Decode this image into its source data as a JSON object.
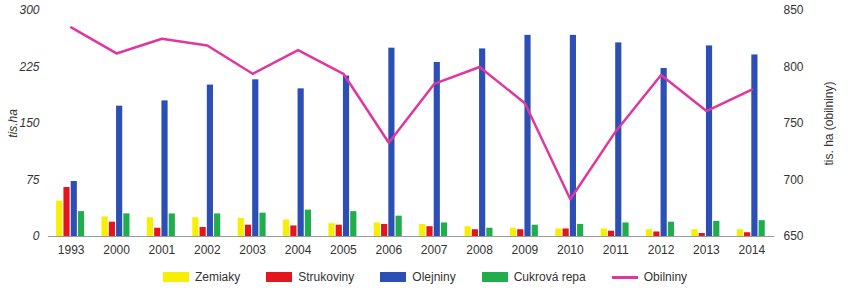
{
  "chart_data": {
    "type": "bar",
    "categories": [
      "1993",
      "2000",
      "2001",
      "2002",
      "2003",
      "2004",
      "2005",
      "2006",
      "2007",
      "2008",
      "2009",
      "2010",
      "2011",
      "2012",
      "2013",
      "2014"
    ],
    "ylabel": "tis.ha",
    "y2label": "tis. ha (obilniny)",
    "ylim": [
      0,
      300
    ],
    "yticks": [
      0,
      75,
      150,
      225,
      300
    ],
    "y2lim": [
      650,
      850
    ],
    "y2ticks": [
      650,
      700,
      750,
      800,
      850
    ],
    "legend": "bottom",
    "series": [
      {
        "name": "Zemiaky",
        "type": "bar",
        "color": "#f7ef00",
        "values": [
          47,
          26,
          25,
          25,
          24,
          22,
          17,
          18,
          16,
          13,
          11,
          10,
          10,
          9,
          9,
          9
        ]
      },
      {
        "name": "Strukoviny",
        "type": "bar",
        "color": "#e3161d",
        "values": [
          65,
          19,
          11,
          12,
          15,
          14,
          15,
          16,
          13,
          9,
          9,
          10,
          7,
          6,
          4,
          5
        ]
      },
      {
        "name": "Olejniny",
        "type": "bar",
        "color": "#2b4fb5",
        "values": [
          73,
          173,
          180,
          201,
          208,
          196,
          213,
          250,
          231,
          249,
          267,
          267,
          257,
          223,
          253,
          241
        ]
      },
      {
        "name": "Cukrová repa",
        "type": "bar",
        "color": "#20ad4c",
        "values": [
          33,
          30,
          30,
          30,
          31,
          35,
          33,
          27,
          18,
          11,
          15,
          16,
          18,
          19,
          20,
          21
        ]
      },
      {
        "name": "Obilniny",
        "type": "line",
        "axis": "y2",
        "color": "#e0379f",
        "values": [
          835,
          812,
          825,
          819,
          794,
          815,
          794,
          733,
          785,
          800,
          768,
          683,
          743,
          793,
          761,
          780
        ]
      }
    ]
  }
}
